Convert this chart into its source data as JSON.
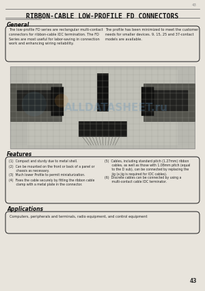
{
  "title": "RIBBON-CABLE LOW-PROFILE FD CONNECTORS",
  "page_bg": "#e8e4dc",
  "section_general": "General",
  "general_text_left": "The low-profile FD series are rectangular multi-contact\nconnectors for ribbon-cable IDC termination. The FD\nSeries are most useful for labor-saving in connection\nwork and enhancing wiring reliability.",
  "general_text_right": "The profile has been minimized to meet the customer\nneeds for smaller devices. 9, 15, 25 and 37-contact\nmodels are available.",
  "section_features": "Features",
  "features_left": [
    "(1)  Compact and sturdy due to metal shell.",
    "(2)  Can be mounted on the front or back of a panel or\n       chassis as necessary.",
    "(3)  Much lower Profile to permit miniaturization.",
    "(4)  Fixes the cable securely by fitting the ribbon cable\n       clamp with a metal plate in the connector."
  ],
  "features_right": [
    "(5)  Cables, including standard pitch (1.27mm) ribbon\n       cables, as well as those with 1.08mm pitch (equal\n       to the D sub), can be connected by replacing the\n       jig (a jig is required for IDC cables).",
    "(6)  Discrete cables can be connected by using a\n       multi-contact cable IDC terminator."
  ],
  "section_applications": "Applications",
  "applications_text": "Computers, peripherals and terminals, radio equipment, and control equipment",
  "page_number": "43",
  "watermark": "ALLDATASHEET.ru",
  "line_color": "#555555",
  "box_color": "#333333",
  "text_color": "#222222",
  "heading_color": "#111111"
}
